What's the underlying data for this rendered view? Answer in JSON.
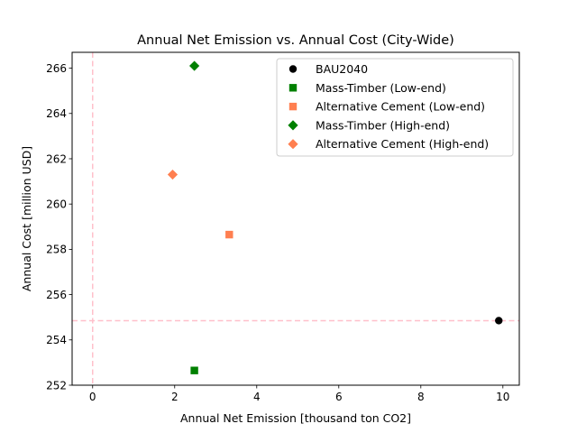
{
  "chart_data": {
    "type": "scatter",
    "title": "Annual Net Emission vs. Annual Cost (City-Wide)",
    "xlabel": "Annual Net Emission [thousand ton CO2]",
    "ylabel": "Annual Cost [million USD]",
    "xlim": [
      -0.5,
      10.4
    ],
    "ylim": [
      252.0,
      266.7
    ],
    "xticks": [
      0,
      2,
      4,
      6,
      8,
      10
    ],
    "yticks": [
      252,
      254,
      256,
      258,
      260,
      262,
      264,
      266
    ],
    "grid": false,
    "legend_position": "top-right",
    "reference_lines": [
      {
        "orientation": "vertical",
        "value": 0,
        "color": "#ffc0cb",
        "style": "dashed"
      },
      {
        "orientation": "horizontal",
        "value": 254.85,
        "color": "#ffc0cb",
        "style": "dashed"
      }
    ],
    "series": [
      {
        "name": "BAU2040",
        "marker": "circle",
        "color": "#000000",
        "x": [
          9.9
        ],
        "y": [
          254.85
        ]
      },
      {
        "name": "Mass-Timber (Low-end)",
        "marker": "square",
        "color": "#008000",
        "x": [
          2.48
        ],
        "y": [
          252.65
        ]
      },
      {
        "name": "Alternative Cement (Low-end)",
        "marker": "square",
        "color": "#ff7f50",
        "x": [
          3.33
        ],
        "y": [
          258.65
        ]
      },
      {
        "name": "Mass-Timber (High-end)",
        "marker": "diamond",
        "color": "#008000",
        "x": [
          2.48
        ],
        "y": [
          266.1
        ]
      },
      {
        "name": "Alternative Cement (High-end)",
        "marker": "diamond",
        "color": "#ff7f50",
        "x": [
          1.95
        ],
        "y": [
          261.3
        ]
      }
    ]
  }
}
